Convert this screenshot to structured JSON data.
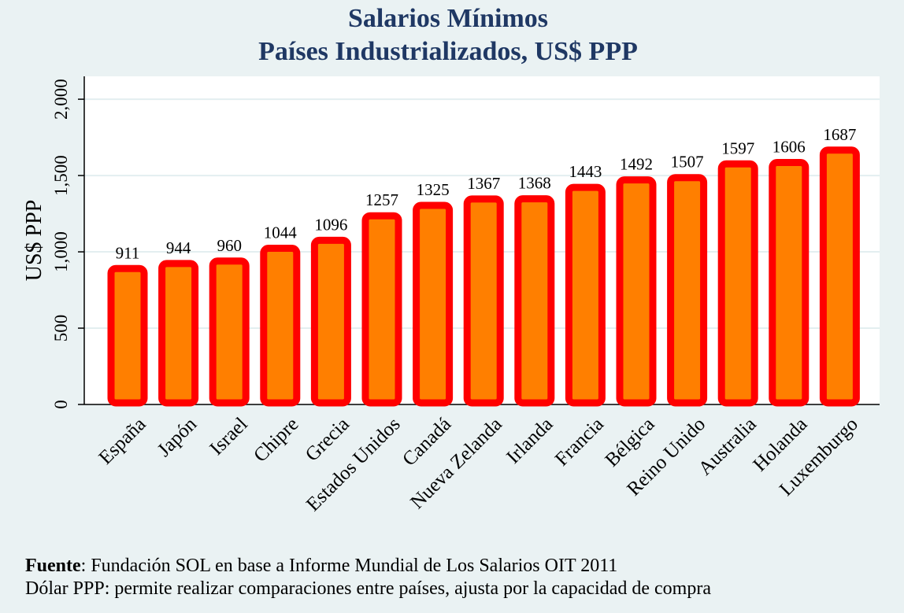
{
  "chart_data": {
    "type": "bar",
    "title": "Salarios Mínimos",
    "subtitle": "Países Industrializados, US$ PPP",
    "ylabel": "US$ PPP",
    "xlabel": "",
    "ylim": [
      0,
      2150
    ],
    "yticks": [
      0,
      500,
      1000,
      1500,
      2000
    ],
    "ytick_labels": [
      "0",
      "500",
      "1,000",
      "1,500",
      "2,000"
    ],
    "grid": true,
    "categories": [
      "España",
      "Japón",
      "Israel",
      "Chipre",
      "Grecia",
      "Estados Unidos",
      "Canadá",
      "Nueva Zelanda",
      "Irlanda",
      "Francia",
      "Bélgica",
      "Reino Unido",
      "Australia",
      "Holanda",
      "Luxemburgo"
    ],
    "values": [
      911,
      944,
      960,
      1044,
      1096,
      1257,
      1325,
      1367,
      1368,
      1443,
      1492,
      1507,
      1597,
      1606,
      1687
    ],
    "colors": {
      "bar_fill": "#ff7f00",
      "bar_border": "#ff0000",
      "title": "#1f3864",
      "plot_bg": "#ffffff",
      "page_bg": "#eaf2f3",
      "grid": "#e3eef0"
    }
  },
  "footer": {
    "source_label": "Fuente",
    "source_text": ": Fundación SOL en base a Informe Mundial de Los Salarios OIT 2011",
    "note": "Dólar PPP: permite realizar comparaciones entre países, ajusta por la capacidad de compra"
  }
}
